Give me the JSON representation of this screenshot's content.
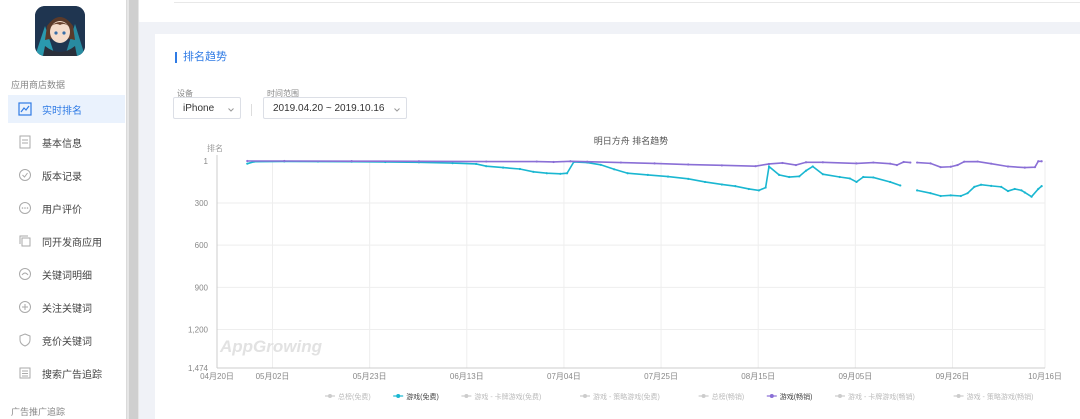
{
  "sidebar": {
    "section_app_store": "应用商店数据",
    "section_ads": "广告推广追踪",
    "items": [
      {
        "label": "实时排名",
        "icon": "chart-icon",
        "active": true
      },
      {
        "label": "基本信息",
        "icon": "document-icon",
        "active": false
      },
      {
        "label": "版本记录",
        "icon": "check-circle-icon",
        "active": false
      },
      {
        "label": "用户评价",
        "icon": "comment-icon",
        "active": false
      },
      {
        "label": "同开发商应用",
        "icon": "copy-icon",
        "active": false
      },
      {
        "label": "关键词明细",
        "icon": "keyword-icon",
        "active": false
      },
      {
        "label": "关注关键词",
        "icon": "plus-circle-icon",
        "active": false
      },
      {
        "label": "竞价关键词",
        "icon": "shield-icon",
        "active": false
      },
      {
        "label": "搜索广告追踪",
        "icon": "list-icon",
        "active": false
      }
    ]
  },
  "panel": {
    "title": "排名趋势",
    "device_label": "设备",
    "device_value": "iPhone",
    "range_label": "时间范围",
    "range_value": "2019.04.20 ~ 2019.10.16"
  },
  "chart_data": {
    "type": "line",
    "title": "明日方舟 排名趋势",
    "ylabel": "排名",
    "watermark": "AppGrowing",
    "y_reversed": true,
    "ylim": [
      1,
      1474
    ],
    "y_ticks": [
      "1",
      "300",
      "600",
      "900",
      "1,200",
      "1,474"
    ],
    "x_ticks": [
      "04月20日",
      "05月02日",
      "05月23日",
      "06月13日",
      "07月04日",
      "07月25日",
      "08月15日",
      "09月05日",
      "09月26日",
      "10月16日"
    ],
    "legend": [
      {
        "name": "总榜(免费)",
        "color": "#cccccc",
        "active": false
      },
      {
        "name": "游戏(免费)",
        "color": "#1ab7d1",
        "active": true
      },
      {
        "name": "游戏 - 卡牌游戏(免费)",
        "color": "#cccccc",
        "active": false
      },
      {
        "name": "游戏 - 策略游戏(免费)",
        "color": "#cccccc",
        "active": false
      },
      {
        "name": "总榜(畅销)",
        "color": "#cccccc",
        "active": false
      },
      {
        "name": "游戏(畅销)",
        "color": "#8a6fd6",
        "active": true
      },
      {
        "name": "游戏 - 卡牌游戏(畅销)",
        "color": "#cccccc",
        "active": false
      },
      {
        "name": "游戏 - 策略游戏(畅销)",
        "color": "#cccccc",
        "active": false
      }
    ],
    "series": [
      {
        "name": "游戏(免费)",
        "color": "#1ab7d1",
        "points": [
          {
            "d": 9,
            "v": 20
          },
          {
            "d": 11,
            "v": 6
          },
          {
            "d": 20,
            "v": 4
          },
          {
            "d": 30,
            "v": 5
          },
          {
            "d": 40,
            "v": 6
          },
          {
            "d": 50,
            "v": 8
          },
          {
            "d": 60,
            "v": 10
          },
          {
            "d": 70,
            "v": 16
          },
          {
            "d": 77,
            "v": 22
          },
          {
            "d": 80,
            "v": 38
          },
          {
            "d": 85,
            "v": 48
          },
          {
            "d": 90,
            "v": 58
          },
          {
            "d": 94,
            "v": 78
          },
          {
            "d": 98,
            "v": 88
          },
          {
            "d": 102,
            "v": 92
          },
          {
            "d": 104,
            "v": 88
          },
          {
            "d": 106,
            "v": 8
          },
          {
            "d": 110,
            "v": 12
          },
          {
            "d": 114,
            "v": 28
          },
          {
            "d": 118,
            "v": 60
          },
          {
            "d": 122,
            "v": 88
          },
          {
            "d": 128,
            "v": 100
          },
          {
            "d": 134,
            "v": 112
          },
          {
            "d": 140,
            "v": 128
          },
          {
            "d": 145,
            "v": 150
          },
          {
            "d": 150,
            "v": 168
          },
          {
            "d": 154,
            "v": 180
          },
          {
            "d": 158,
            "v": 200
          },
          {
            "d": 161,
            "v": 210
          },
          {
            "d": 163,
            "v": 190
          },
          {
            "d": 164,
            "v": 40
          },
          {
            "d": 167,
            "v": 100
          },
          {
            "d": 170,
            "v": 115
          },
          {
            "d": 173,
            "v": 110
          },
          {
            "d": 175,
            "v": 70
          },
          {
            "d": 177,
            "v": 40
          },
          {
            "d": 180,
            "v": 95
          },
          {
            "d": 185,
            "v": 115
          },
          {
            "d": 188,
            "v": 125
          },
          {
            "d": 190,
            "v": 150
          },
          {
            "d": 192,
            "v": 115
          },
          {
            "d": 195,
            "v": 118
          },
          {
            "d": 200,
            "v": 150
          },
          {
            "d": 203,
            "v": 175
          },
          {
            "d": 207,
            "v": null
          },
          {
            "d": 208,
            "v": 210
          },
          {
            "d": 212,
            "v": 230
          },
          {
            "d": 215,
            "v": 250
          },
          {
            "d": 218,
            "v": 245
          },
          {
            "d": 221,
            "v": 250
          },
          {
            "d": 223,
            "v": 230
          },
          {
            "d": 225,
            "v": 185
          },
          {
            "d": 227,
            "v": 170
          },
          {
            "d": 230,
            "v": 178
          },
          {
            "d": 233,
            "v": 185
          },
          {
            "d": 235,
            "v": 215
          },
          {
            "d": 237,
            "v": 200
          },
          {
            "d": 239,
            "v": 210
          },
          {
            "d": 240,
            "v": 225
          },
          {
            "d": 242,
            "v": 255
          },
          {
            "d": 244,
            "v": 200
          },
          {
            "d": 245,
            "v": 180
          }
        ]
      },
      {
        "name": "游戏(畅销)",
        "color": "#8a6fd6",
        "points": [
          {
            "d": 9,
            "v": 1
          },
          {
            "d": 20,
            "v": 1
          },
          {
            "d": 40,
            "v": 2
          },
          {
            "d": 60,
            "v": 3
          },
          {
            "d": 80,
            "v": 5
          },
          {
            "d": 95,
            "v": 5
          },
          {
            "d": 100,
            "v": 8
          },
          {
            "d": 105,
            "v": 3
          },
          {
            "d": 110,
            "v": 6
          },
          {
            "d": 120,
            "v": 12
          },
          {
            "d": 130,
            "v": 18
          },
          {
            "d": 140,
            "v": 26
          },
          {
            "d": 150,
            "v": 32
          },
          {
            "d": 160,
            "v": 38
          },
          {
            "d": 164,
            "v": 22
          },
          {
            "d": 168,
            "v": 15
          },
          {
            "d": 172,
            "v": 30
          },
          {
            "d": 175,
            "v": 10
          },
          {
            "d": 180,
            "v": 10
          },
          {
            "d": 190,
            "v": 18
          },
          {
            "d": 195,
            "v": 12
          },
          {
            "d": 200,
            "v": 20
          },
          {
            "d": 202,
            "v": 30
          },
          {
            "d": 204,
            "v": 8
          },
          {
            "d": 206,
            "v": 12
          },
          {
            "d": 207,
            "v": null
          },
          {
            "d": 208,
            "v": 12
          },
          {
            "d": 212,
            "v": 18
          },
          {
            "d": 215,
            "v": 45
          },
          {
            "d": 218,
            "v": 42
          },
          {
            "d": 220,
            "v": 30
          },
          {
            "d": 222,
            "v": 6
          },
          {
            "d": 226,
            "v": 5
          },
          {
            "d": 230,
            "v": 20
          },
          {
            "d": 235,
            "v": 40
          },
          {
            "d": 240,
            "v": 48
          },
          {
            "d": 243,
            "v": 45
          },
          {
            "d": 244,
            "v": 3
          },
          {
            "d": 245,
            "v": 3
          }
        ]
      }
    ]
  }
}
